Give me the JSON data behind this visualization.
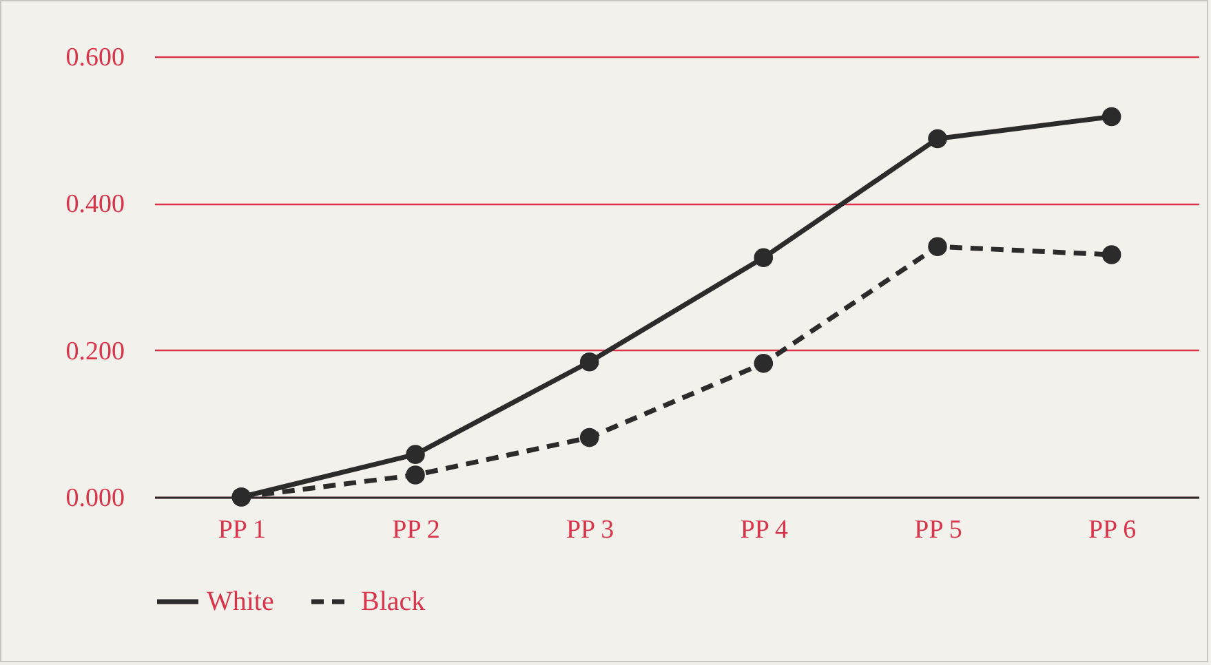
{
  "chart_data": {
    "type": "line",
    "categories": [
      "PP 1",
      "PP 2",
      "PP 3",
      "PP 4",
      "PP 5",
      "PP 6"
    ],
    "series": [
      {
        "name": "White",
        "color": "#2b2b2b",
        "line_style": "solid",
        "values": [
          0.0,
          0.058,
          0.184,
          0.326,
          0.488,
          0.518
        ]
      },
      {
        "name": "Black",
        "color": "#2b2b2b",
        "line_style": "dashed",
        "values": [
          0.0,
          0.03,
          0.081,
          0.182,
          0.341,
          0.33
        ]
      }
    ],
    "ylim": [
      0,
      0.6
    ],
    "yticks": [
      {
        "value": 0,
        "label": "0.000"
      },
      {
        "value": 0.2,
        "label": "0.200"
      },
      {
        "value": 0.4,
        "label": "0.400"
      },
      {
        "value": 0.6,
        "label": "0.600"
      }
    ],
    "grid": "y",
    "legend": "bottom",
    "marker": "circle"
  }
}
